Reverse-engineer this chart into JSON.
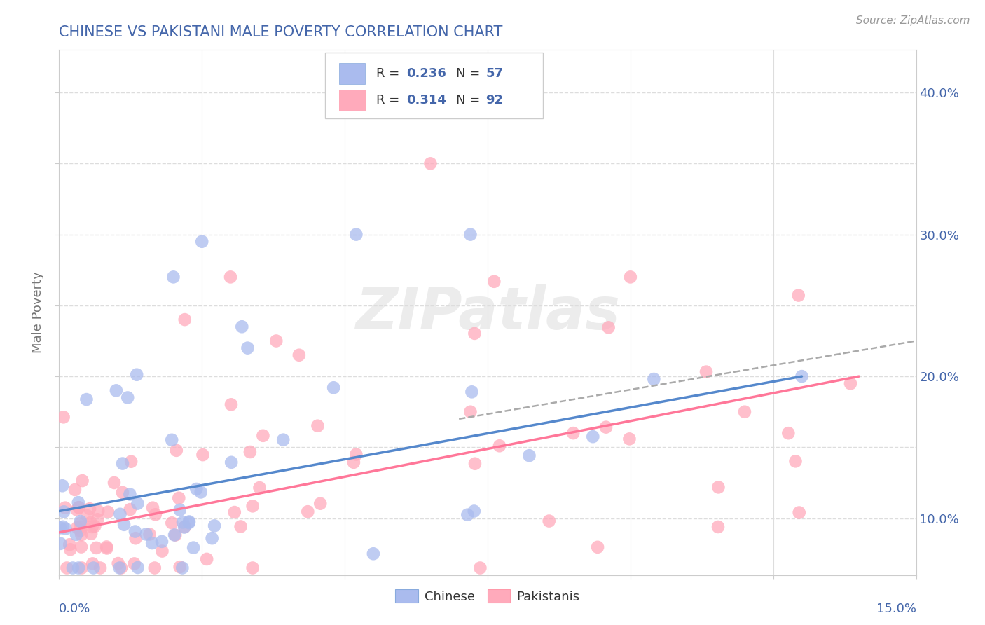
{
  "title": "CHINESE VS PAKISTANI MALE POVERTY CORRELATION CHART",
  "source": "Source: ZipAtlas.com",
  "ylabel": "Male Poverty",
  "xlim": [
    0.0,
    0.15
  ],
  "ylim": [
    0.06,
    0.43
  ],
  "yticks": [
    0.1,
    0.15,
    0.2,
    0.25,
    0.3,
    0.35,
    0.4
  ],
  "ytick_labels_right": [
    "10.0%",
    "",
    "20.0%",
    "",
    "30.0%",
    "",
    "40.0%"
  ],
  "chinese_R": 0.236,
  "chinese_N": 57,
  "pakistani_R": 0.314,
  "pakistani_N": 92,
  "blue_color": "#AABBEE",
  "pink_color": "#FFAABB",
  "blue_line_color": "#5588CC",
  "pink_line_color": "#FF7799",
  "gray_dash_color": "#AAAAAA",
  "title_color": "#4466AA",
  "axis_label_color": "#4466AA",
  "background_color": "#FFFFFF",
  "watermark": "ZIPatlas",
  "grid_color": "#DDDDDD"
}
